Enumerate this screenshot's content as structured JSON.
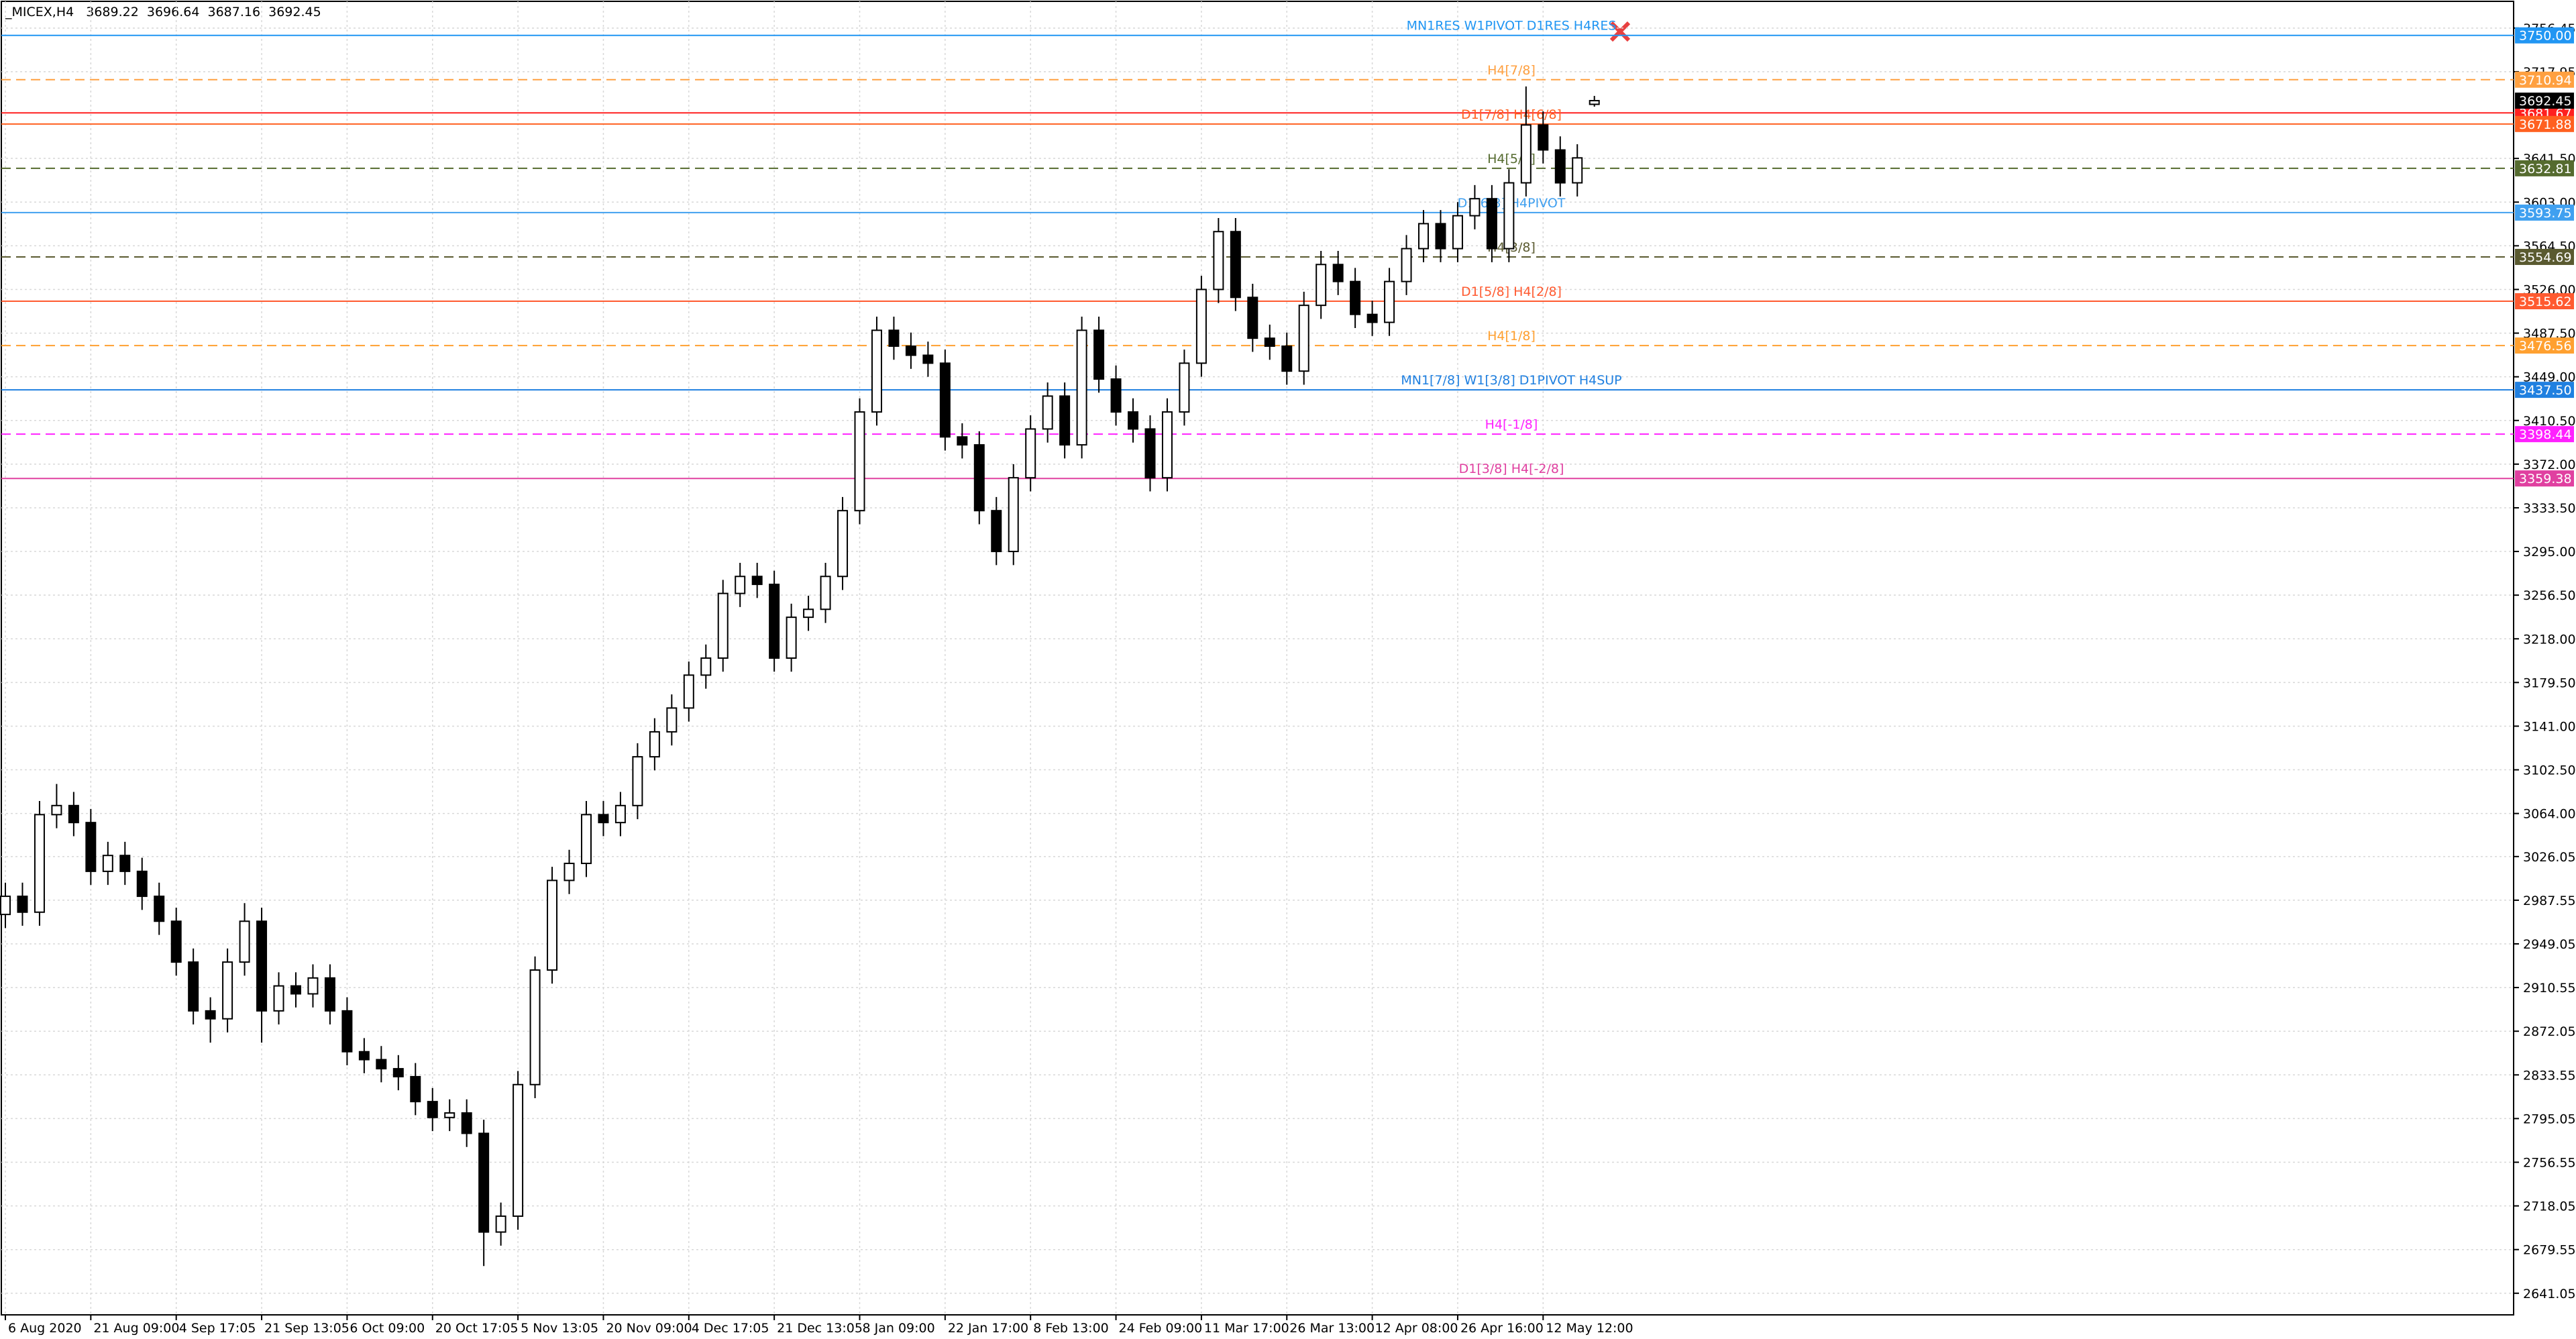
{
  "chart_data": {
    "type": "candlestick",
    "symbol": "_MICEX,H4",
    "categories": [
      "6 Aug 2020",
      null,
      null,
      null,
      null,
      "21 Aug 09:00",
      null,
      null,
      null,
      null,
      "4 Sep 17:05",
      null,
      null,
      null,
      null,
      "21 Sep 13:05",
      null,
      null,
      null,
      null,
      "6 Oct 09:00",
      null,
      null,
      null,
      null,
      "20 Oct 17:05",
      null,
      null,
      null,
      null,
      "5 Nov 13:05",
      null,
      null,
      null,
      null,
      "20 Nov 09:00",
      null,
      null,
      null,
      null,
      "4 Dec 17:05",
      null,
      null,
      null,
      null,
      "21 Dec 13:05",
      null,
      null,
      null,
      null,
      "8 Jan 09:00",
      null,
      null,
      null,
      null,
      "22 Jan 17:00",
      null,
      null,
      null,
      null,
      "8 Feb 13:00",
      null,
      null,
      null,
      null,
      "24 Feb 09:00",
      null,
      null,
      null,
      null,
      "11 Mar 17:00",
      null,
      null,
      null,
      null,
      "26 Mar 13:00",
      null,
      null,
      null,
      null,
      "12 Apr 08:00",
      null,
      null,
      null,
      null,
      "26 Apr 16:00",
      null,
      null,
      null,
      null,
      "12 May 12:00",
      null,
      null,
      null
    ],
    "ohlc": [
      [
        2975,
        3003,
        2963,
        2991
      ],
      [
        2991,
        3003,
        2965,
        2977
      ],
      [
        2977,
        3075,
        2965,
        3063
      ],
      [
        3063,
        3090,
        3051,
        3071
      ],
      [
        3071,
        3083,
        3044,
        3056
      ],
      [
        3056,
        3068,
        3001,
        3013
      ],
      [
        3013,
        3039,
        3001,
        3027
      ],
      [
        3027,
        3039,
        3001,
        3013
      ],
      [
        3013,
        3025,
        2979,
        2991
      ],
      [
        2991,
        3003,
        2957,
        2969
      ],
      [
        2969,
        2981,
        2921,
        2933
      ],
      [
        2933,
        2945,
        2878,
        2890
      ],
      [
        2890,
        2902,
        2862,
        2883
      ],
      [
        2883,
        2945,
        2871,
        2933
      ],
      [
        2933,
        2985,
        2921,
        2969
      ],
      [
        2969,
        2981,
        2862,
        2890
      ],
      [
        2890,
        2924,
        2878,
        2912
      ],
      [
        2912,
        2924,
        2893,
        2905
      ],
      [
        2905,
        2931,
        2893,
        2919
      ],
      [
        2919,
        2931,
        2878,
        2890
      ],
      [
        2890,
        2902,
        2842,
        2854
      ],
      [
        2854,
        2866,
        2835,
        2847
      ],
      [
        2847,
        2859,
        2827,
        2839
      ],
      [
        2839,
        2851,
        2820,
        2832
      ],
      [
        2832,
        2844,
        2798,
        2810
      ],
      [
        2810,
        2822,
        2784,
        2796
      ],
      [
        2796,
        2812,
        2784,
        2800
      ],
      [
        2800,
        2812,
        2770,
        2782
      ],
      [
        2782,
        2794,
        2665,
        2695
      ],
      [
        2695,
        2721,
        2683,
        2709
      ],
      [
        2709,
        2837,
        2697,
        2825
      ],
      [
        2825,
        2938,
        2813,
        2926
      ],
      [
        2926,
        3017,
        2914,
        3005
      ],
      [
        3005,
        3032,
        2993,
        3020
      ],
      [
        3020,
        3075,
        3008,
        3063
      ],
      [
        3063,
        3075,
        3044,
        3056
      ],
      [
        3056,
        3083,
        3044,
        3071
      ],
      [
        3071,
        3126,
        3059,
        3114
      ],
      [
        3114,
        3148,
        3102,
        3136
      ],
      [
        3136,
        3169,
        3124,
        3157
      ],
      [
        3157,
        3198,
        3145,
        3186
      ],
      [
        3186,
        3213,
        3174,
        3201
      ],
      [
        3201,
        3270,
        3189,
        3258
      ],
      [
        3258,
        3285,
        3246,
        3273
      ],
      [
        3273,
        3285,
        3254,
        3266
      ],
      [
        3266,
        3278,
        3189,
        3201
      ],
      [
        3201,
        3249,
        3189,
        3237
      ],
      [
        3237,
        3256,
        3225,
        3244
      ],
      [
        3244,
        3285,
        3232,
        3273
      ],
      [
        3273,
        3343,
        3261,
        3331
      ],
      [
        3331,
        3430,
        3319,
        3418
      ],
      [
        3418,
        3502,
        3406,
        3490
      ],
      [
        3490,
        3502,
        3464,
        3476
      ],
      [
        3476,
        3488,
        3456,
        3468
      ],
      [
        3468,
        3480,
        3449,
        3461
      ],
      [
        3461,
        3473,
        3384,
        3396
      ],
      [
        3396,
        3408,
        3377,
        3389
      ],
      [
        3389,
        3401,
        3319,
        3331
      ],
      [
        3331,
        3343,
        3283,
        3295
      ],
      [
        3295,
        3372,
        3283,
        3360
      ],
      [
        3360,
        3415,
        3348,
        3403
      ],
      [
        3403,
        3444,
        3391,
        3432
      ],
      [
        3432,
        3444,
        3377,
        3389
      ],
      [
        3389,
        3502,
        3377,
        3490
      ],
      [
        3490,
        3502,
        3435,
        3447
      ],
      [
        3447,
        3459,
        3406,
        3418
      ],
      [
        3418,
        3430,
        3391,
        3403
      ],
      [
        3403,
        3415,
        3348,
        3360
      ],
      [
        3360,
        3430,
        3348,
        3418
      ],
      [
        3418,
        3473,
        3406,
        3461
      ],
      [
        3461,
        3538,
        3449,
        3526
      ],
      [
        3526,
        3589,
        3514,
        3577
      ],
      [
        3577,
        3589,
        3507,
        3519
      ],
      [
        3519,
        3531,
        3471,
        3483
      ],
      [
        3483,
        3495,
        3464,
        3476
      ],
      [
        3476,
        3488,
        3442,
        3454
      ],
      [
        3454,
        3524,
        3442,
        3512
      ],
      [
        3512,
        3560,
        3500,
        3548
      ],
      [
        3548,
        3560,
        3521,
        3533
      ],
      [
        3533,
        3545,
        3492,
        3504
      ],
      [
        3504,
        3516,
        3485,
        3497
      ],
      [
        3497,
        3545,
        3485,
        3533
      ],
      [
        3533,
        3574,
        3521,
        3562
      ],
      [
        3562,
        3596,
        3550,
        3584
      ],
      [
        3584,
        3596,
        3550,
        3562
      ],
      [
        3562,
        3603,
        3550,
        3591
      ],
      [
        3591,
        3618,
        3579,
        3606
      ],
      [
        3606,
        3618,
        3550,
        3562
      ],
      [
        3562,
        3632,
        3550,
        3620
      ],
      [
        3620,
        3705,
        3608,
        3671
      ],
      [
        3671,
        3683,
        3637,
        3649
      ],
      [
        3649,
        3661,
        3608,
        3620
      ],
      [
        3620,
        3654,
        3608,
        3642
      ],
      [
        3689.22,
        3696.64,
        3687.16,
        3692.45
      ]
    ],
    "ylim": [
      2622,
      3780
    ],
    "yticks": [
      3756.45,
      3717.95,
      {
        "value": 3641.5,
        "label": "3641.50"
      },
      {
        "value": 3603,
        "label": "3603.00"
      },
      {
        "value": 3564.5,
        "label": "3564.50"
      },
      {
        "value": 3526,
        "label": "3526.00"
      },
      {
        "value": 3487.5,
        "label": "3487.50"
      },
      {
        "value": 3449,
        "label": "3449.00"
      },
      {
        "value": 3410.5,
        "label": "3410.50"
      },
      {
        "value": 3372,
        "label": "3372.00"
      },
      {
        "value": 3333.5,
        "label": "3333.50"
      },
      {
        "value": 3295,
        "label": "3295.00"
      },
      {
        "value": 3256.5,
        "label": "3256.50"
      },
      {
        "value": 3218,
        "label": "3218.00"
      },
      {
        "value": 3179.5,
        "label": "3179.50"
      },
      {
        "value": 3141,
        "label": "3141.00"
      },
      {
        "value": 3102.5,
        "label": "3102.50"
      },
      {
        "value": 3064,
        "label": "3064.00"
      },
      3026.05,
      2987.55,
      2949.05,
      2910.55,
      2872.05,
      2833.55,
      2795.05,
      2756.55,
      2718.05,
      2679.55,
      2641.05
    ],
    "grid": true,
    "up_color": "#ffffff",
    "down_color": "#000000",
    "levels": [
      {
        "text": "MN1RES W1PIVOT D1RES H4RES",
        "price": {
          "value": 3750,
          "label": "3750.00"
        },
        "color": "#2196f3",
        "dashed": false
      },
      {
        "text": "H4[7/8]",
        "price": 3710.94,
        "color": "#ffa040",
        "dashed": true
      },
      {
        "price": 3681.67,
        "color": "#ff2020",
        "dashed": false
      },
      {
        "text": "D1[7/8] H4[6/8]",
        "price": 3671.88,
        "color": "#ff6020",
        "dashed": false
      },
      {
        "text": "H4[5/8]",
        "price": 3632.81,
        "color": "#556b2f",
        "dashed": true
      },
      {
        "text": "D1[6/8] H4PIVOT",
        "price": 3593.75,
        "color": "#40a0f0",
        "dashed": false
      },
      {
        "text": "H4[3/8]",
        "price": 3554.69,
        "color": "#5a5a30",
        "dashed": true
      },
      {
        "text": "D1[5/8] H4[2/8]",
        "price": 3515.62,
        "color": "#ff5a30",
        "dashed": false
      },
      {
        "text": "H4[1/8]",
        "price": 3476.56,
        "color": "#ffa030",
        "dashed": true
      },
      {
        "text": "MN1[7/8] W1[3/8] D1PIVOT H4SUP",
        "price": {
          "value": 3437.5,
          "label": "3437.50"
        },
        "color": "#2080e0",
        "dashed": false
      },
      {
        "text": "H4[-1/8]",
        "price": 3398.44,
        "color": "#ff20ff",
        "dashed": true
      },
      {
        "text": "D1[3/8] H4[-2/8]",
        "price": 3359.38,
        "color": "#e040a0",
        "dashed": false
      }
    ]
  }
}
